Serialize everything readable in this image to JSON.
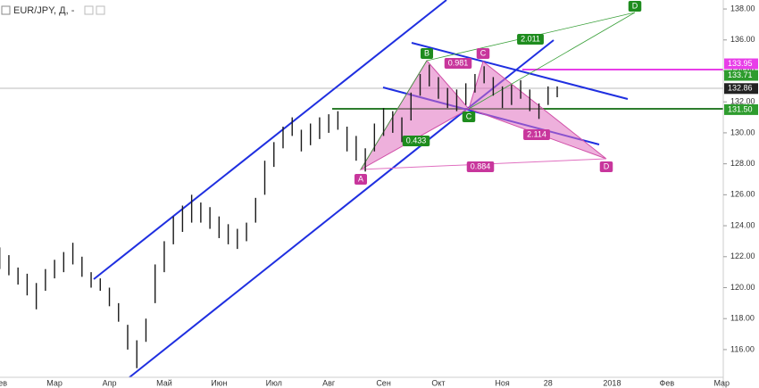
{
  "chart_data": {
    "type": "range",
    "title": "EUR/JPY, Д, -",
    "categories": [
      "Фев",
      null,
      null,
      null,
      null,
      null,
      "Мар",
      null,
      null,
      null,
      null,
      null,
      "Апр",
      null,
      null,
      null,
      null,
      null,
      "Май",
      null,
      null,
      null,
      null,
      null,
      "Июн",
      null,
      null,
      null,
      null,
      null,
      "Июл",
      null,
      null,
      null,
      null,
      null,
      "Авг",
      null,
      null,
      null,
      null,
      null,
      "Сен",
      null,
      null,
      null,
      null,
      null,
      "Окт",
      null,
      null,
      null,
      null,
      null,
      null,
      "Ноя",
      null,
      null,
      null,
      null,
      "28",
      null,
      null,
      null,
      null,
      null,
      null,
      "2018",
      null,
      null,
      null,
      null,
      null,
      "Фев",
      null,
      null,
      null,
      null,
      null,
      "Мар"
    ],
    "high": [
      122.6,
      122.1,
      121.3,
      120.9,
      120.3,
      121.2,
      121.8,
      122.3,
      122.9,
      122.0,
      121.0,
      120.6,
      120.0,
      119.0,
      117.6,
      116.6,
      118.0,
      121.5,
      123.0,
      124.6,
      125.3,
      126.0,
      125.5,
      125.2,
      124.6,
      124.1,
      123.8,
      124.2,
      125.8,
      128.2,
      129.4,
      130.4,
      131.0,
      130.2,
      130.6,
      131.0,
      131.2,
      131.4,
      130.4,
      129.8,
      129.0,
      130.6,
      131.6,
      131.4,
      131.0,
      132.6,
      133.8,
      134.4,
      133.6,
      132.9,
      132.8,
      133.2,
      133.8,
      134.3,
      133.6,
      133.0,
      133.1,
      133.4,
      132.8,
      131.9,
      133.0,
      133.0,
      null,
      null,
      null,
      null,
      null,
      null,
      null,
      null,
      null,
      null,
      null,
      null,
      null,
      null,
      null,
      null,
      null,
      null
    ],
    "low": [
      121.2,
      120.8,
      120.2,
      119.5,
      118.6,
      119.8,
      120.6,
      121.0,
      121.5,
      120.7,
      120.0,
      119.8,
      118.8,
      117.8,
      116.0,
      114.8,
      116.5,
      119.0,
      121.0,
      122.8,
      123.6,
      124.2,
      124.2,
      123.8,
      123.2,
      122.8,
      122.5,
      123.0,
      124.2,
      126.0,
      127.8,
      129.0,
      129.8,
      128.8,
      129.2,
      129.6,
      130.0,
      130.2,
      128.8,
      128.2,
      127.5,
      128.8,
      129.8,
      130.0,
      129.4,
      130.8,
      132.4,
      133.0,
      132.2,
      131.6,
      131.4,
      131.8,
      132.6,
      133.2,
      132.4,
      131.6,
      131.8,
      132.2,
      131.4,
      130.9,
      131.8,
      132.3,
      null,
      null,
      null,
      null,
      null,
      null,
      null,
      null,
      null,
      null,
      null,
      null,
      null,
      null,
      null,
      null,
      null,
      null
    ],
    "color": "#1a1a1a",
    "ylim": [
      114.21,
      138.58
    ],
    "yticks": [
      {
        "value": 116,
        "label": "116.00"
      },
      {
        "value": 118,
        "label": "118.00"
      },
      {
        "value": 120,
        "label": "120.00"
      },
      {
        "value": 122,
        "label": "122.00"
      },
      {
        "value": 124,
        "label": "124.00"
      },
      {
        "value": 126,
        "label": "126.00"
      },
      {
        "value": 128,
        "label": "128.00"
      },
      {
        "value": 130,
        "label": "130.00"
      },
      {
        "value": 132,
        "label": "132.00"
      },
      {
        "value": 134,
        "label": "134.00"
      },
      {
        "value": 136,
        "label": "136.00"
      },
      {
        "value": 138,
        "label": "138.00"
      }
    ],
    "grid": false,
    "price_tags": [
      133.95,
      133.71,
      132.86,
      {
        "value": 131.5,
        "label": "131.50"
      }
    ],
    "price_tag_colors": [
      "#e83ee8",
      "#2e9c2e",
      "#222222",
      "#2e9c2e"
    ],
    "annotations": [
      {
        "text": "A",
        "color": "#c8369c"
      },
      {
        "text": "B",
        "color": "#1e8c1e"
      },
      {
        "text": "C",
        "color": "#c8369c"
      },
      {
        "text": "C",
        "color": "#1e8c1e"
      },
      {
        "text": "D",
        "color": "#1e8c1e"
      },
      {
        "text": "D",
        "color": "#c8369c"
      },
      {
        "text": "0.981",
        "color": "#c8369c"
      },
      {
        "text": "2.011",
        "color": "#1e8c1e"
      },
      {
        "text": "0.433",
        "color": "#1e8c1e"
      },
      {
        "text": "2.114",
        "color": "#c8369c"
      },
      {
        "text": "0.884",
        "color": "#c8369c"
      }
    ]
  }
}
